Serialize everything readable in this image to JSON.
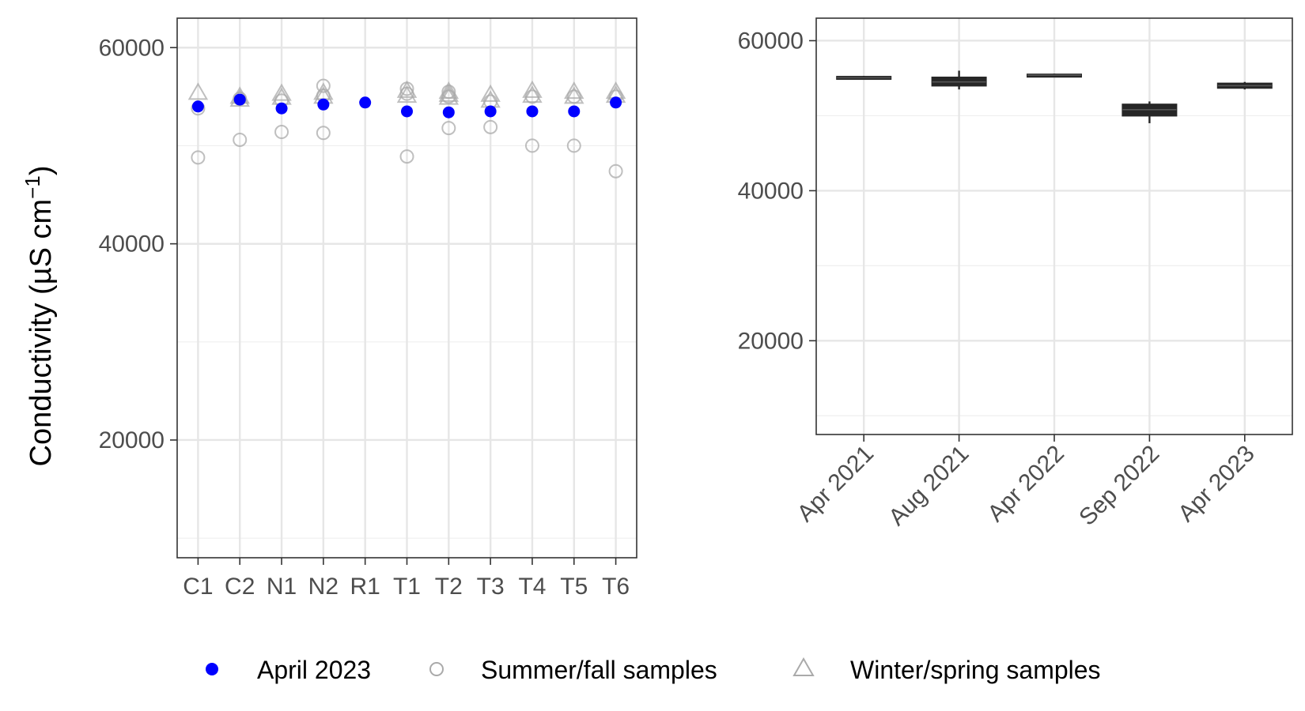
{
  "colors": {
    "april_2023": "#0000ff",
    "hollow_markers": "#aaaaaa",
    "box": "#262626",
    "grid_major": "#e6e6e6",
    "grid_minor": "#efefef",
    "panel_border": "#333333"
  },
  "y_axis_label": "Conductivity (µS cm",
  "y_axis_label_exponent": "−1",
  "y_axis_label_close": ")",
  "legend": {
    "position": "bottom",
    "items": [
      {
        "label": "April 2023",
        "marker": "filled-circle"
      },
      {
        "label": "Summer/fall samples",
        "marker": "hollow-circle"
      },
      {
        "label": "Winter/spring samples",
        "marker": "hollow-triangle"
      }
    ]
  },
  "chart_data": [
    {
      "type": "scatter",
      "categories": [
        "C1",
        "C2",
        "N1",
        "N2",
        "R1",
        "T1",
        "T2",
        "T3",
        "T4",
        "T5",
        "T6"
      ],
      "ylim": [
        8000,
        63000
      ],
      "y_ticks": [
        20000,
        40000,
        60000
      ],
      "y_tick_labels": [
        "20000",
        "40000",
        "60000"
      ],
      "grid": true,
      "series": [
        {
          "name": "April 2023",
          "marker": "filled-circle",
          "points": [
            [
              "C1",
              54000
            ],
            [
              "C2",
              54700
            ],
            [
              "N1",
              53800
            ],
            [
              "N2",
              54200
            ],
            [
              "R1",
              54400
            ],
            [
              "T1",
              53500
            ],
            [
              "T2",
              53400
            ],
            [
              "T3",
              53500
            ],
            [
              "T4",
              53500
            ],
            [
              "T5",
              53500
            ],
            [
              "T6",
              54400
            ]
          ]
        },
        {
          "name": "Summer/fall samples",
          "marker": "hollow-circle",
          "points": [
            [
              "C1",
              53800
            ],
            [
              "C1",
              48800
            ],
            [
              "C2",
              54800
            ],
            [
              "C2",
              50600
            ],
            [
              "N1",
              54600
            ],
            [
              "N1",
              51400
            ],
            [
              "N2",
              56100
            ],
            [
              "N2",
              55100
            ],
            [
              "N2",
              51300
            ],
            [
              "T1",
              55800
            ],
            [
              "T1",
              55300
            ],
            [
              "T1",
              48900
            ],
            [
              "T2",
              55500
            ],
            [
              "T2",
              55000
            ],
            [
              "T2",
              51800
            ],
            [
              "T3",
              54500
            ],
            [
              "T3",
              51900
            ],
            [
              "T4",
              55000
            ],
            [
              "T4",
              50000
            ],
            [
              "T5",
              55000
            ],
            [
              "T5",
              50000
            ],
            [
              "T6",
              55000
            ],
            [
              "T6",
              47400
            ]
          ]
        },
        {
          "name": "Winter/spring samples",
          "marker": "hollow-triangle",
          "points": [
            [
              "C1",
              55400
            ],
            [
              "C2",
              55000
            ],
            [
              "C2",
              54700
            ],
            [
              "N1",
              55300
            ],
            [
              "N1",
              54900
            ],
            [
              "N2",
              55400
            ],
            [
              "N2",
              55000
            ],
            [
              "T1",
              55600
            ],
            [
              "T1",
              55100
            ],
            [
              "T2",
              55500
            ],
            [
              "T2",
              55200
            ],
            [
              "T2",
              54900
            ],
            [
              "T3",
              55200
            ],
            [
              "T3",
              54600
            ],
            [
              "T4",
              55600
            ],
            [
              "T4",
              55100
            ],
            [
              "T5",
              55500
            ],
            [
              "T5",
              55000
            ],
            [
              "T6",
              55500
            ],
            [
              "T6",
              55100
            ]
          ]
        }
      ]
    },
    {
      "type": "box",
      "categories": [
        "Apr 2021",
        "Aug 2021",
        "Apr 2022",
        "Sep 2022",
        "Apr 2023"
      ],
      "ylim": [
        7500,
        63000
      ],
      "y_ticks": [
        20000,
        40000,
        60000
      ],
      "y_tick_labels": [
        "20000",
        "40000",
        "60000"
      ],
      "grid": true,
      "boxes": [
        {
          "category": "Apr 2021",
          "min": 54800,
          "q1": 54950,
          "median": 55050,
          "q3": 55200,
          "max": 55300
        },
        {
          "category": "Aug 2021",
          "min": 53500,
          "q1": 54000,
          "median": 54500,
          "q3": 55100,
          "max": 56000
        },
        {
          "category": "Apr 2022",
          "min": 55200,
          "q1": 55300,
          "median": 55400,
          "q3": 55500,
          "max": 55600
        },
        {
          "category": "Sep 2022",
          "min": 49000,
          "q1": 50000,
          "median": 50800,
          "q3": 51500,
          "max": 51900
        },
        {
          "category": "Apr 2023",
          "min": 53500,
          "q1": 53700,
          "median": 54000,
          "q3": 54300,
          "max": 54500
        }
      ]
    }
  ]
}
